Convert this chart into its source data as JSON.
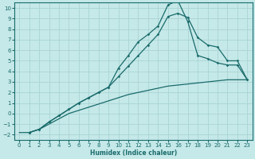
{
  "xlabel": "Humidex (Indice chaleur)",
  "bg_color": "#c5e8e8",
  "grid_color": "#aad4d4",
  "line_color": "#1a6b6b",
  "xlim": [
    -0.5,
    23.5
  ],
  "ylim": [
    -2.5,
    10.5
  ],
  "xticks": [
    0,
    1,
    2,
    3,
    4,
    5,
    6,
    7,
    8,
    9,
    10,
    11,
    12,
    13,
    14,
    15,
    16,
    17,
    18,
    19,
    20,
    21,
    22,
    23
  ],
  "yticks": [
    -2,
    -1,
    0,
    1,
    2,
    3,
    4,
    5,
    6,
    7,
    8,
    9,
    10
  ],
  "curve1_x": [
    0,
    1,
    2,
    3,
    4,
    5,
    6,
    7,
    8,
    9,
    10,
    11,
    12,
    13,
    14,
    15,
    16,
    17,
    18,
    19,
    20,
    21,
    22,
    23
  ],
  "curve1_y": [
    -1.8,
    -1.8,
    -1.5,
    -1.0,
    -0.5,
    0.0,
    0.3,
    0.6,
    0.9,
    1.2,
    1.5,
    1.8,
    2.0,
    2.2,
    2.4,
    2.6,
    2.7,
    2.8,
    2.9,
    3.0,
    3.1,
    3.2,
    3.2,
    3.2
  ],
  "curve2_x": [
    1,
    2,
    3,
    4,
    5,
    6,
    7,
    8,
    9,
    10,
    11,
    12,
    13,
    14,
    15,
    16,
    17,
    18,
    19,
    20,
    21,
    22,
    23
  ],
  "curve2_y": [
    -1.8,
    -1.5,
    -0.8,
    -0.2,
    0.4,
    1.0,
    1.5,
    2.0,
    2.5,
    3.5,
    4.5,
    5.5,
    6.5,
    7.5,
    9.2,
    9.5,
    9.1,
    7.2,
    6.5,
    6.3,
    5.0,
    5.0,
    3.2
  ],
  "curve3_x": [
    1,
    2,
    3,
    4,
    5,
    6,
    7,
    8,
    9,
    10,
    11,
    12,
    13,
    14,
    15,
    16,
    17,
    18,
    19,
    20,
    21,
    22,
    23
  ],
  "curve3_y": [
    -1.8,
    -1.5,
    -0.8,
    -0.2,
    0.4,
    1.0,
    1.5,
    2.0,
    2.5,
    4.3,
    5.5,
    6.8,
    7.5,
    8.3,
    10.3,
    10.7,
    8.7,
    5.5,
    5.2,
    4.8,
    4.6,
    4.6,
    3.2
  ]
}
